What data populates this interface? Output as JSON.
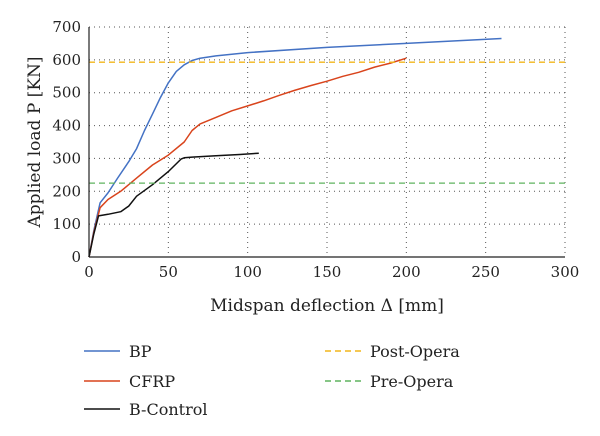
{
  "chart_data": {
    "type": "line",
    "title": "",
    "xlabel": "Midspan deflection Δ [mm]",
    "ylabel": "Applied load P [KN]",
    "xlim": [
      0,
      300
    ],
    "ylim": [
      0,
      700
    ],
    "x_ticks": [
      0,
      50,
      100,
      150,
      200,
      250,
      300
    ],
    "y_ticks": [
      0,
      100,
      200,
      300,
      400,
      500,
      600,
      700
    ],
    "grid": "dotted",
    "legend_position": "bottom",
    "series": [
      {
        "name": "BP",
        "color": "#4472c4",
        "dash": "solid",
        "x": [
          0,
          3,
          7,
          12,
          18,
          25,
          30,
          35,
          40,
          45,
          50,
          55,
          60,
          65,
          70,
          80,
          100,
          150,
          200,
          260
        ],
        "y": [
          0,
          80,
          165,
          195,
          240,
          290,
          330,
          385,
          435,
          485,
          530,
          565,
          585,
          598,
          605,
          612,
          622,
          638,
          650,
          665
        ]
      },
      {
        "name": "CFRP",
        "color": "#d9441c",
        "dash": "solid",
        "x": [
          0,
          3,
          7,
          12,
          20,
          30,
          40,
          50,
          60,
          65,
          70,
          80,
          90,
          100,
          110,
          120,
          130,
          140,
          150,
          160,
          170,
          180,
          190,
          200
        ],
        "y": [
          0,
          75,
          150,
          175,
          200,
          240,
          280,
          310,
          350,
          385,
          405,
          425,
          445,
          460,
          475,
          492,
          508,
          522,
          535,
          550,
          562,
          578,
          590,
          605
        ]
      },
      {
        "name": "B-Control",
        "color": "#111111",
        "dash": "solid",
        "x": [
          0,
          3,
          6,
          12,
          20,
          25,
          30,
          40,
          50,
          58,
          60,
          65,
          80,
          95,
          107
        ],
        "y": [
          0,
          70,
          125,
          130,
          138,
          155,
          185,
          220,
          260,
          298,
          302,
          304,
          308,
          312,
          316
        ]
      },
      {
        "name": "Post-Opera",
        "color": "#f2b61a",
        "dash": "dashed",
        "x": [
          0,
          300
        ],
        "y": [
          593,
          593
        ]
      },
      {
        "name": "Pre-Opera",
        "color": "#5fb35f",
        "dash": "dashed",
        "x": [
          0,
          300
        ],
        "y": [
          225,
          225
        ]
      }
    ]
  }
}
